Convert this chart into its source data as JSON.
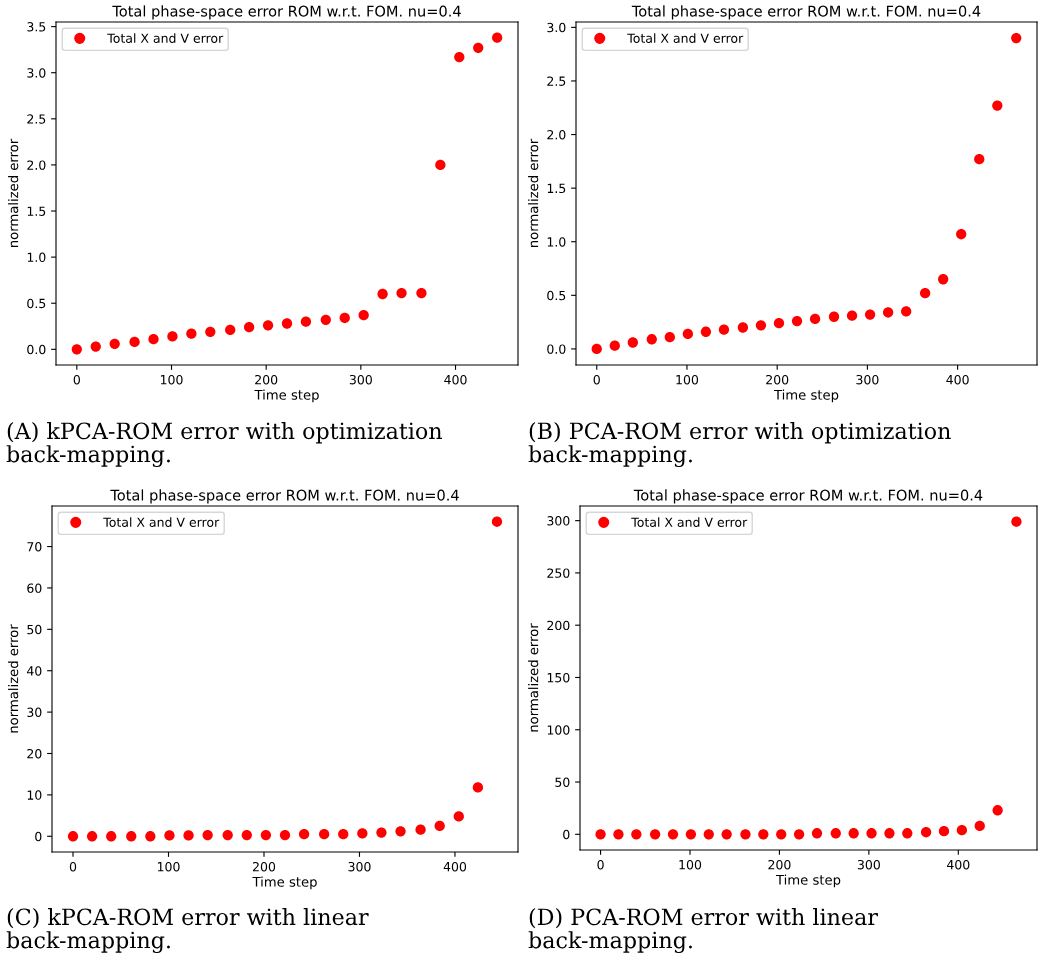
{
  "chart_data": [
    {
      "type": "scatter",
      "title": "Total phase-space error ROM w.r.t. FOM. nu=0.4",
      "xlabel": "Time step",
      "ylabel": "normalized error",
      "legend": "top left",
      "marker": "circle",
      "grid": false,
      "x": [
        0,
        20,
        40,
        61,
        81,
        101,
        121,
        141,
        162,
        182,
        202,
        222,
        242,
        263,
        283,
        303,
        323,
        343,
        364,
        384,
        404,
        424,
        444
      ],
      "series": [
        {
          "name": "Total X and V error",
          "color": "#ff0000",
          "values": [
            0,
            0.03,
            0.06,
            0.08,
            0.11,
            0.14,
            0.17,
            0.19,
            0.21,
            0.24,
            0.26,
            0.28,
            0.3,
            0.32,
            0.34,
            0.37,
            0.6,
            0.61,
            0.61,
            2.0,
            3.17,
            3.27,
            3.38
          ]
        }
      ],
      "xlim": [
        -22,
        466
      ],
      "ylim": [
        -0.17,
        3.55
      ],
      "xticks": [
        0,
        100,
        200,
        300,
        400
      ],
      "yticks": [
        {
          "value": 0,
          "label": "0.0"
        },
        0.5,
        {
          "value": 1,
          "label": "1.0"
        },
        1.5,
        {
          "value": 2,
          "label": "2.0"
        },
        2.5,
        {
          "value": 3,
          "label": "3.0"
        },
        3.5
      ],
      "annotations": [
        "(A) kPCA-ROM error with optimization back-mapping."
      ]
    },
    {
      "type": "scatter",
      "title": "Total phase-space error ROM w.r.t. FOM. nu=0.4",
      "xlabel": "Time step",
      "ylabel": "normalized error",
      "legend": "top left",
      "marker": "circle",
      "grid": false,
      "x": [
        0,
        20,
        40,
        61,
        81,
        101,
        121,
        141,
        162,
        182,
        202,
        222,
        242,
        263,
        283,
        303,
        323,
        343,
        364,
        384,
        404,
        424,
        444,
        465
      ],
      "series": [
        {
          "name": "Total X and V error",
          "color": "#ff0000",
          "values": [
            0,
            0.03,
            0.06,
            0.09,
            0.11,
            0.14,
            0.16,
            0.18,
            0.2,
            0.22,
            0.24,
            0.26,
            0.28,
            0.3,
            0.31,
            0.32,
            0.34,
            0.35,
            0.52,
            0.65,
            1.07,
            1.77,
            2.27,
            2.9
          ]
        }
      ],
      "xlim": [
        -23,
        488
      ],
      "ylim": [
        -0.15,
        3.05
      ],
      "xticks": [
        0,
        100,
        200,
        300,
        400
      ],
      "yticks": [
        {
          "value": 0,
          "label": "0.0"
        },
        0.5,
        {
          "value": 1,
          "label": "1.0"
        },
        1.5,
        {
          "value": 2,
          "label": "2.0"
        },
        2.5,
        {
          "value": 3,
          "label": "3.0"
        }
      ],
      "annotations": [
        "(B) PCA-ROM error with optimization back-mapping."
      ]
    },
    {
      "type": "scatter",
      "title": "Total phase-space error ROM w.r.t. FOM. nu=0.4",
      "xlabel": "Time step",
      "ylabel": "normalized error",
      "legend": "top left",
      "marker": "circle",
      "grid": false,
      "x": [
        0,
        20,
        40,
        61,
        81,
        101,
        121,
        141,
        162,
        182,
        202,
        222,
        242,
        263,
        283,
        303,
        323,
        343,
        364,
        384,
        404,
        424,
        444
      ],
      "series": [
        {
          "name": "Total X and V error",
          "color": "#ff0000",
          "values": [
            0,
            0,
            0,
            0,
            0,
            0.2,
            0.2,
            0.3,
            0.3,
            0.3,
            0.3,
            0.3,
            0.5,
            0.5,
            0.5,
            0.7,
            0.9,
            1.2,
            1.6,
            2.5,
            4.8,
            11.8,
            76
          ]
        }
      ],
      "xlim": [
        -22,
        466
      ],
      "ylim": [
        -3.8,
        79.8
      ],
      "xticks": [
        0,
        100,
        200,
        300,
        400
      ],
      "yticks": [
        0,
        10,
        20,
        30,
        40,
        50,
        60,
        70
      ],
      "annotations": [
        "(C) kPCA-ROM error with linear back-mapping."
      ]
    },
    {
      "type": "scatter",
      "title": "Total phase-space error ROM w.r.t. FOM. nu=0.4",
      "xlabel": "Time step",
      "ylabel": "normalized error",
      "legend": "top left",
      "marker": "circle",
      "grid": false,
      "x": [
        0,
        20,
        40,
        61,
        81,
        101,
        121,
        141,
        162,
        182,
        202,
        222,
        242,
        263,
        283,
        303,
        323,
        343,
        364,
        384,
        404,
        424,
        444,
        465
      ],
      "series": [
        {
          "name": "Total X and V error",
          "color": "#ff0000",
          "values": [
            0,
            0,
            0,
            0,
            0,
            0,
            0,
            0,
            0,
            0,
            0,
            0,
            1,
            1,
            1,
            1,
            1,
            1,
            2,
            3,
            4,
            8,
            23,
            299
          ]
        }
      ],
      "xlim": [
        -23,
        488
      ],
      "ylim": [
        -15,
        314
      ],
      "xticks": [
        0,
        100,
        200,
        300,
        400
      ],
      "yticks": [
        0,
        50,
        100,
        150,
        200,
        250,
        300
      ],
      "annotations": [
        "(D) PCA-ROM error with linear back-mapping."
      ]
    }
  ]
}
